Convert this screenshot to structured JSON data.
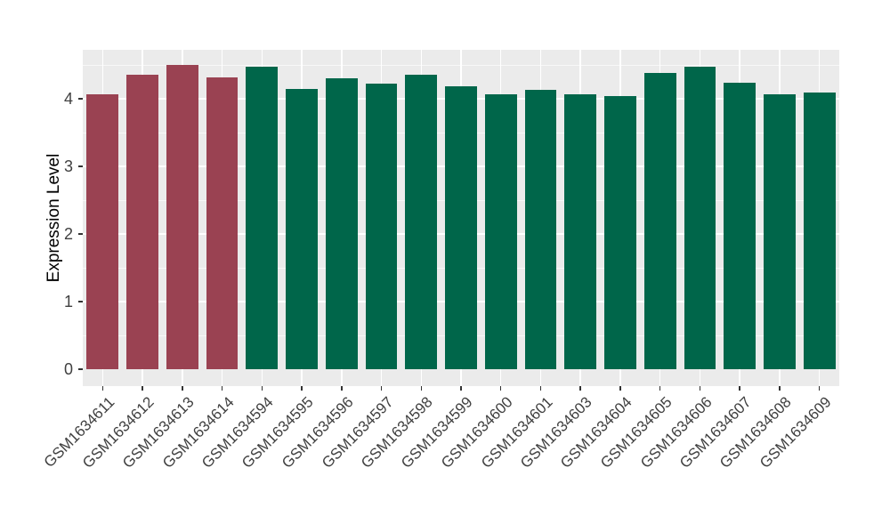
{
  "chart_data": {
    "type": "bar",
    "title": "",
    "ylabel": "Expression Level",
    "xlabel": "",
    "categories": [
      "GSM1634611",
      "GSM1634612",
      "GSM1634613",
      "GSM1634614",
      "GSM1634594",
      "GSM1634595",
      "GSM1634596",
      "GSM1634597",
      "GSM1634598",
      "GSM1634599",
      "GSM1634600",
      "GSM1634601",
      "GSM1634603",
      "GSM1634604",
      "GSM1634605",
      "GSM1634606",
      "GSM1634607",
      "GSM1634608",
      "GSM1634609"
    ],
    "values": [
      4.06,
      4.36,
      4.5,
      4.31,
      4.47,
      4.15,
      4.3,
      4.23,
      4.35,
      4.19,
      4.06,
      4.13,
      4.07,
      4.04,
      4.38,
      4.48,
      4.24,
      4.06,
      4.09
    ],
    "groups": [
      "maroon",
      "maroon",
      "maroon",
      "maroon",
      "green",
      "green",
      "green",
      "green",
      "green",
      "green",
      "green",
      "green",
      "green",
      "green",
      "green",
      "green",
      "green",
      "green",
      "green"
    ],
    "colors": {
      "maroon": "#9A4252",
      "green": "#00664A",
      "panel_bg": "#EBEBEB",
      "grid": "#FFFFFF",
      "axis_text": "#404040"
    },
    "yticks": [
      0,
      1,
      2,
      3,
      4
    ],
    "ylim": [
      0,
      4.72
    ],
    "grid": true,
    "legend_position": "none",
    "bar_width_fraction": 0.8
  }
}
